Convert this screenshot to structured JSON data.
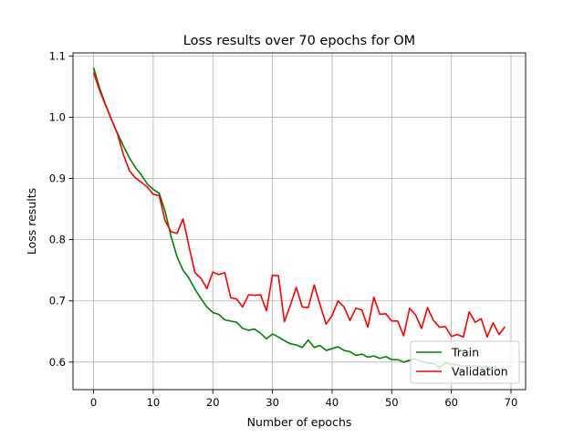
{
  "chart_data": {
    "type": "line",
    "title": "Loss results over 70 epochs for OM",
    "xlabel": "Number of epochs",
    "ylabel": "Loss results",
    "xlim": [
      -3.45,
      72.45
    ],
    "ylim": [
      0.555,
      1.105
    ],
    "xticks": [
      0,
      10,
      20,
      30,
      40,
      50,
      60,
      70
    ],
    "yticks": [
      0.6,
      0.7,
      0.8,
      0.9,
      1.0,
      1.1
    ],
    "ytick_labels": [
      "0.6",
      "0.7",
      "0.8",
      "0.9",
      "1.0",
      "1.1"
    ],
    "grid": true,
    "legend_position": "lower-right",
    "x": [
      0,
      1,
      2,
      3,
      4,
      5,
      6,
      7,
      8,
      9,
      10,
      11,
      12,
      13,
      14,
      15,
      16,
      17,
      18,
      19,
      20,
      21,
      22,
      23,
      24,
      25,
      26,
      27,
      28,
      29,
      30,
      31,
      32,
      33,
      34,
      35,
      36,
      37,
      38,
      39,
      40,
      41,
      42,
      43,
      44,
      45,
      46,
      47,
      48,
      49,
      50,
      51,
      52,
      53,
      54,
      55,
      56,
      57,
      58,
      59,
      60,
      61,
      62,
      63,
      64,
      65,
      66,
      67,
      68,
      69
    ],
    "series": [
      {
        "name": "Train",
        "color": "#008000",
        "values": [
          1.081,
          1.048,
          1.021,
          0.996,
          0.974,
          0.953,
          0.934,
          0.918,
          0.906,
          0.891,
          0.882,
          0.876,
          0.846,
          0.805,
          0.772,
          0.75,
          0.737,
          0.719,
          0.704,
          0.69,
          0.681,
          0.678,
          0.669,
          0.667,
          0.665,
          0.655,
          0.652,
          0.654,
          0.647,
          0.638,
          0.646,
          0.641,
          0.635,
          0.63,
          0.628,
          0.624,
          0.636,
          0.624,
          0.627,
          0.619,
          0.622,
          0.625,
          0.619,
          0.617,
          0.611,
          0.613,
          0.608,
          0.61,
          0.606,
          0.609,
          0.604,
          0.604,
          0.6,
          0.603,
          0.605,
          0.601,
          0.598,
          0.598,
          0.591,
          0.599,
          0.597,
          0.596,
          0.593,
          0.594,
          0.594,
          0.591,
          0.592,
          0.589,
          0.589,
          0.588
        ]
      },
      {
        "name": "Validation",
        "color": "#ff0000",
        "values": [
          1.073,
          1.044,
          1.02,
          0.996,
          0.973,
          0.939,
          0.913,
          0.901,
          0.894,
          0.886,
          0.874,
          0.872,
          0.831,
          0.813,
          0.81,
          0.834,
          0.789,
          0.746,
          0.737,
          0.72,
          0.747,
          0.743,
          0.746,
          0.705,
          0.703,
          0.69,
          0.71,
          0.709,
          0.71,
          0.684,
          0.742,
          0.741,
          0.666,
          0.693,
          0.722,
          0.69,
          0.689,
          0.726,
          0.693,
          0.662,
          0.676,
          0.7,
          0.69,
          0.668,
          0.688,
          0.685,
          0.657,
          0.706,
          0.678,
          0.679,
          0.667,
          0.667,
          0.643,
          0.688,
          0.677,
          0.655,
          0.689,
          0.668,
          0.657,
          0.658,
          0.642,
          0.645,
          0.641,
          0.682,
          0.665,
          0.671,
          0.641,
          0.664,
          0.645,
          0.658
        ]
      }
    ]
  }
}
